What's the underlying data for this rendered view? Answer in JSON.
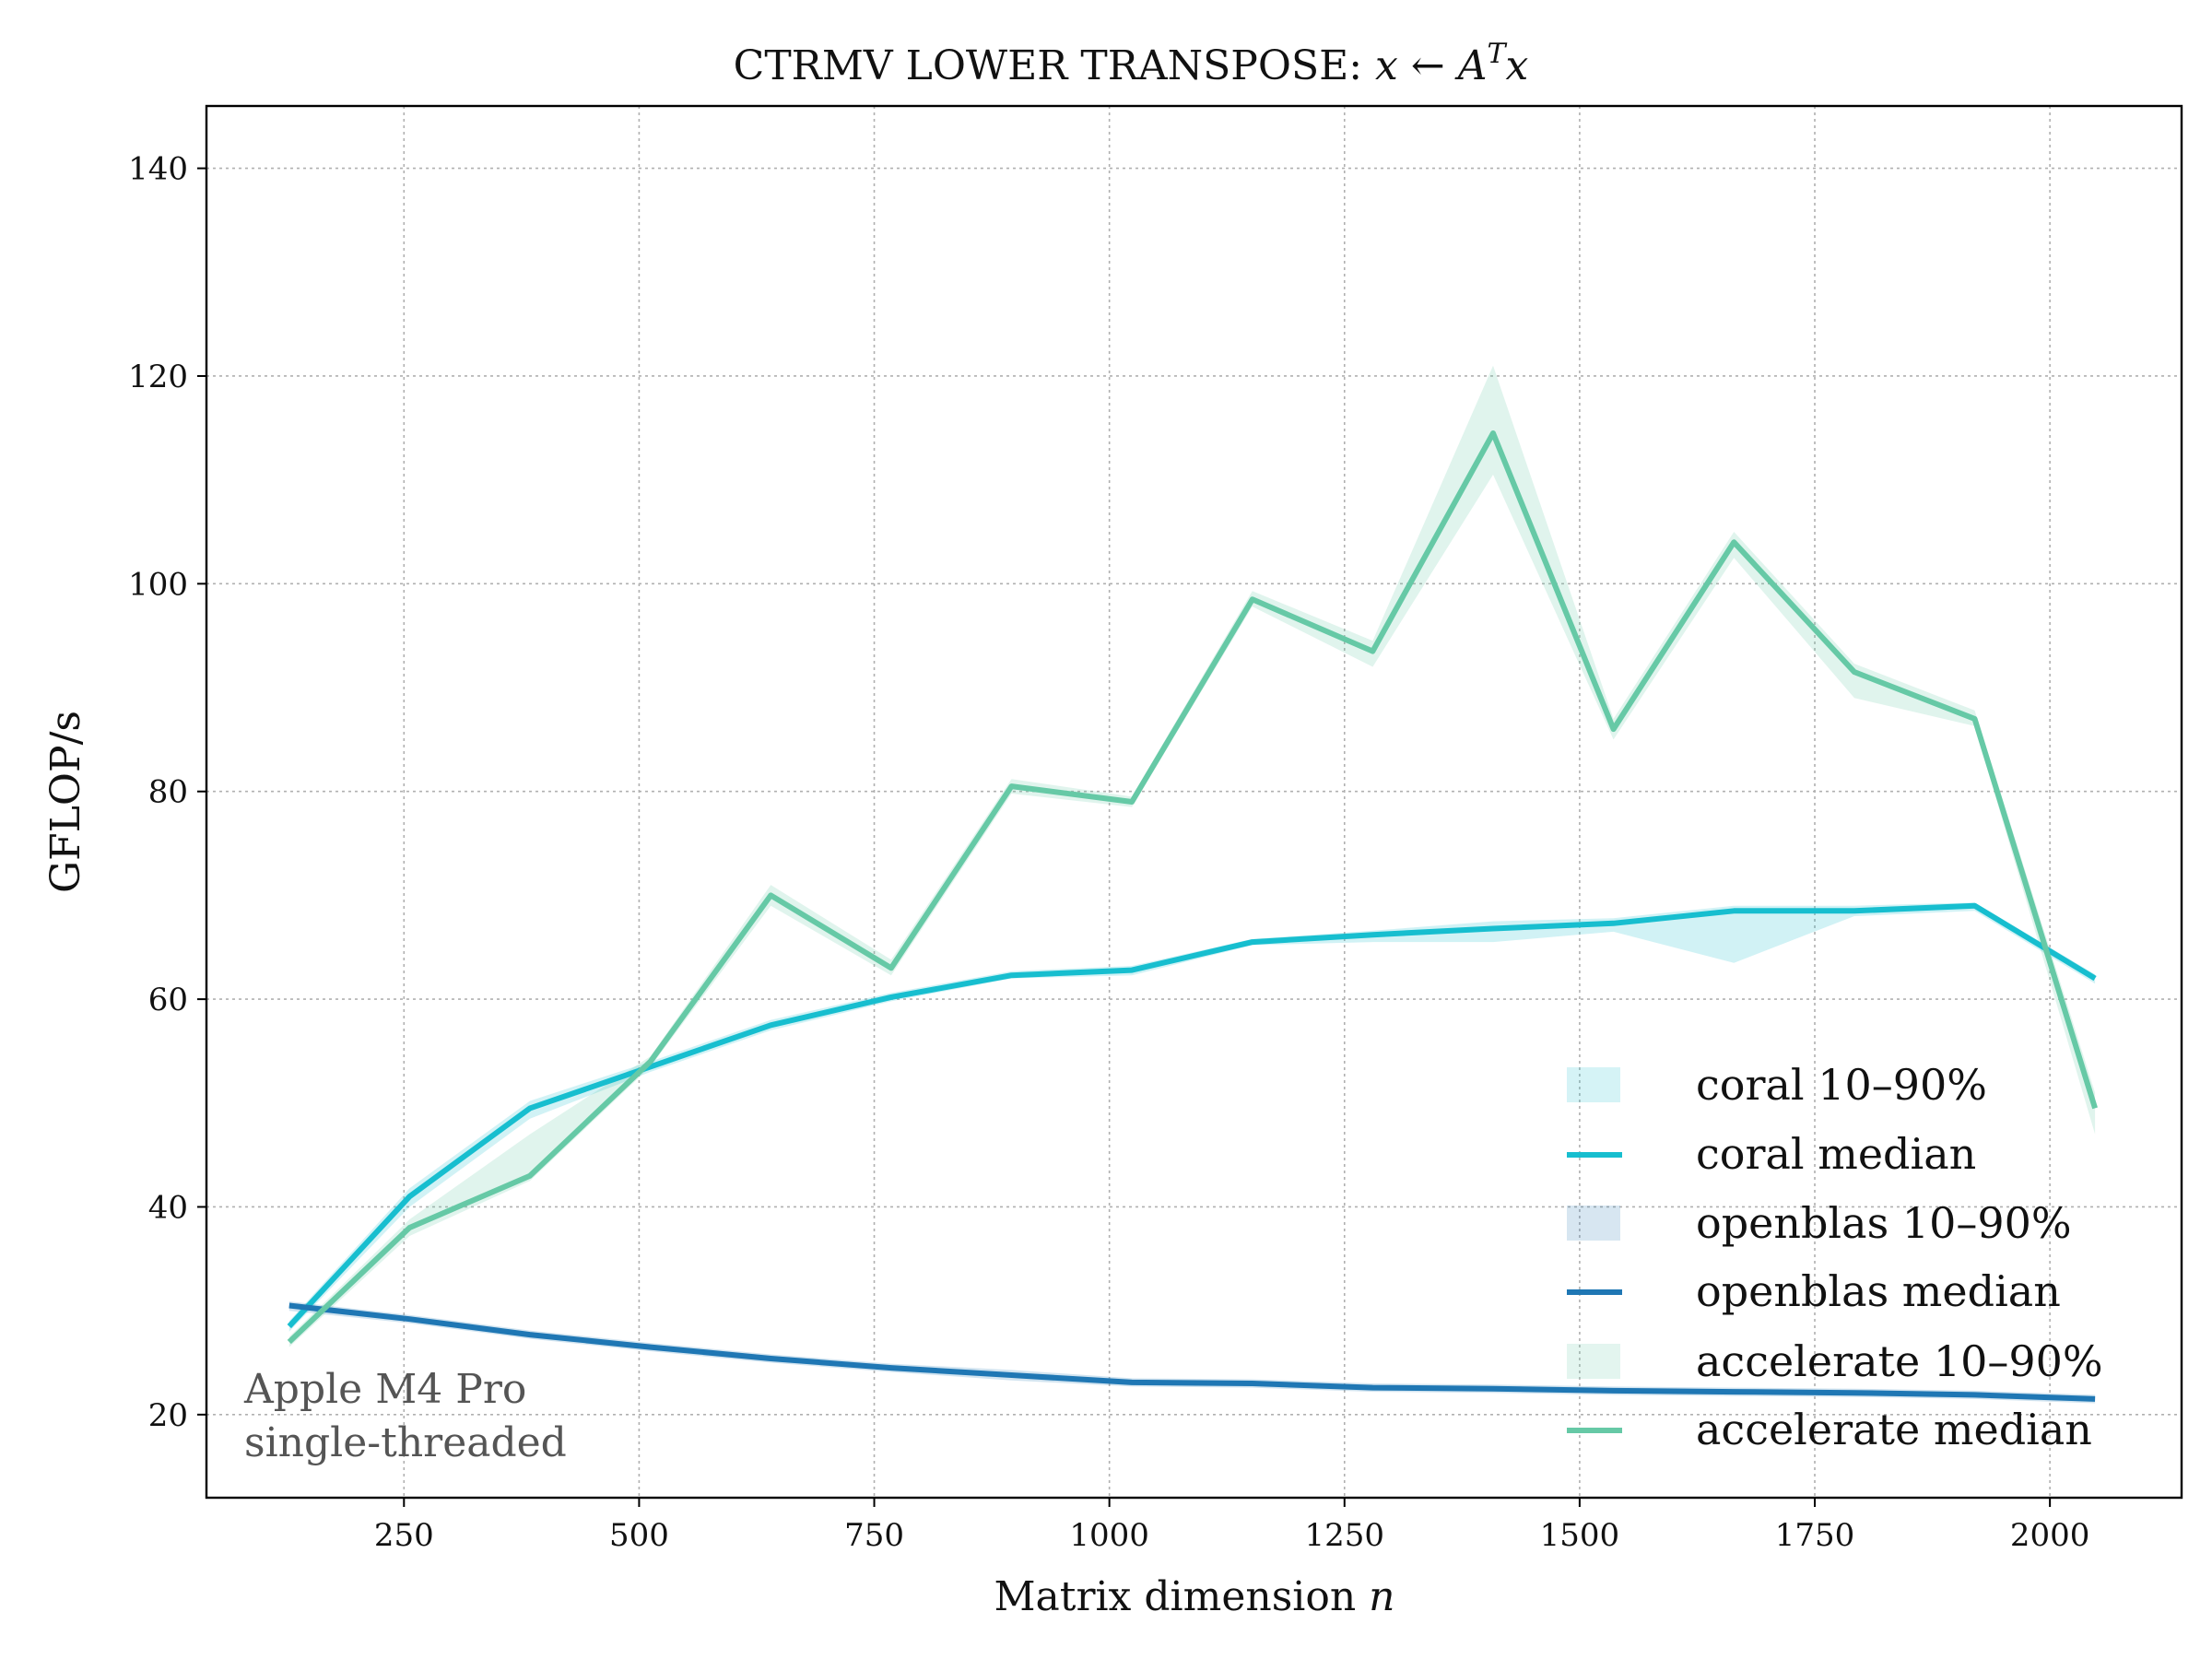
{
  "chart_data": {
    "type": "line",
    "title": {
      "text": "CTRMV LOWER TRANSPOSE: ",
      "math_x1": "x",
      "math_arrow": " ← ",
      "math_A": "A",
      "math_T": "T",
      "math_x2": "x"
    },
    "xlabel": {
      "text": "Matrix dimension ",
      "math": "n"
    },
    "ylabel": "GFLOP/s",
    "xlim": [
      40,
      2140
    ],
    "ylim": [
      12,
      146
    ],
    "xticks": [
      250,
      500,
      750,
      1000,
      1250,
      1500,
      1750,
      2000
    ],
    "xtick_labels": [
      "250",
      "500",
      "750",
      "1000",
      "1250",
      "1500",
      "1750",
      "2000"
    ],
    "yticks": [
      20,
      40,
      60,
      80,
      100,
      120,
      140
    ],
    "ytick_labels": [
      "20",
      "40",
      "60",
      "80",
      "100",
      "120",
      "140"
    ],
    "grid": true,
    "legend_position": "lower-right",
    "x": [
      128,
      256,
      384,
      512,
      640,
      768,
      896,
      1024,
      1152,
      1280,
      1408,
      1536,
      1664,
      1792,
      1920,
      2048
    ],
    "series": [
      {
        "name": "coral",
        "color": "#17becf",
        "band_label": "coral 10–90%",
        "median_label": "coral median",
        "median": [
          28.5,
          41,
          49.5,
          53.5,
          57.5,
          60.2,
          62.3,
          62.8,
          65.5,
          66.2,
          66.8,
          67.3,
          68.5,
          68.5,
          69,
          62
        ],
        "p10": [
          28,
          40,
          48.5,
          53,
          57,
          59.8,
          62,
          62.3,
          65.2,
          65.5,
          65.5,
          66.5,
          63.5,
          68,
          68.5,
          61.5
        ],
        "p90": [
          29,
          41.8,
          50.2,
          54,
          58,
          60.6,
          62.7,
          63.2,
          65.8,
          66.6,
          67.5,
          67.8,
          69,
          69,
          69.3,
          62.4
        ]
      },
      {
        "name": "openblas",
        "color": "#1f77b4",
        "band_label": "openblas 10–90%",
        "median_label": "openblas median",
        "median": [
          30.5,
          29.2,
          27.7,
          26.5,
          25.4,
          24.5,
          23.8,
          23.1,
          23,
          22.6,
          22.5,
          22.3,
          22.2,
          22.1,
          21.9,
          21.5
        ],
        "p10": [
          30,
          28.8,
          27.3,
          26.1,
          25,
          24.1,
          23.3,
          22.7,
          22.6,
          22.2,
          22.1,
          21.9,
          21.8,
          21.7,
          21.5,
          21.1
        ],
        "p90": [
          30.9,
          29.6,
          28.1,
          26.9,
          25.8,
          24.9,
          24.3,
          23.5,
          23.4,
          23,
          22.9,
          22.7,
          22.6,
          22.5,
          22.3,
          21.9
        ]
      },
      {
        "name": "accelerate",
        "color": "#66c9a6",
        "band_label": "accelerate 10–90%",
        "median_label": "accelerate median",
        "median": [
          27,
          38,
          43,
          54,
          70,
          63,
          80.5,
          79,
          98.5,
          93.5,
          114.5,
          86,
          104,
          91.5,
          87,
          49.5
        ],
        "p10": [
          26.5,
          37.2,
          42.5,
          53.5,
          69,
          62.3,
          79.8,
          78.5,
          97.8,
          92,
          110.5,
          85,
          102.5,
          89,
          86.3,
          47
        ],
        "p90": [
          27.5,
          38.8,
          47,
          54.5,
          71,
          63.8,
          81.2,
          79.5,
          99.3,
          94.5,
          121,
          87,
          105,
          92.3,
          87.8,
          51
        ]
      }
    ],
    "annotation": [
      "Apple M4 Pro",
      "single-threaded"
    ]
  }
}
